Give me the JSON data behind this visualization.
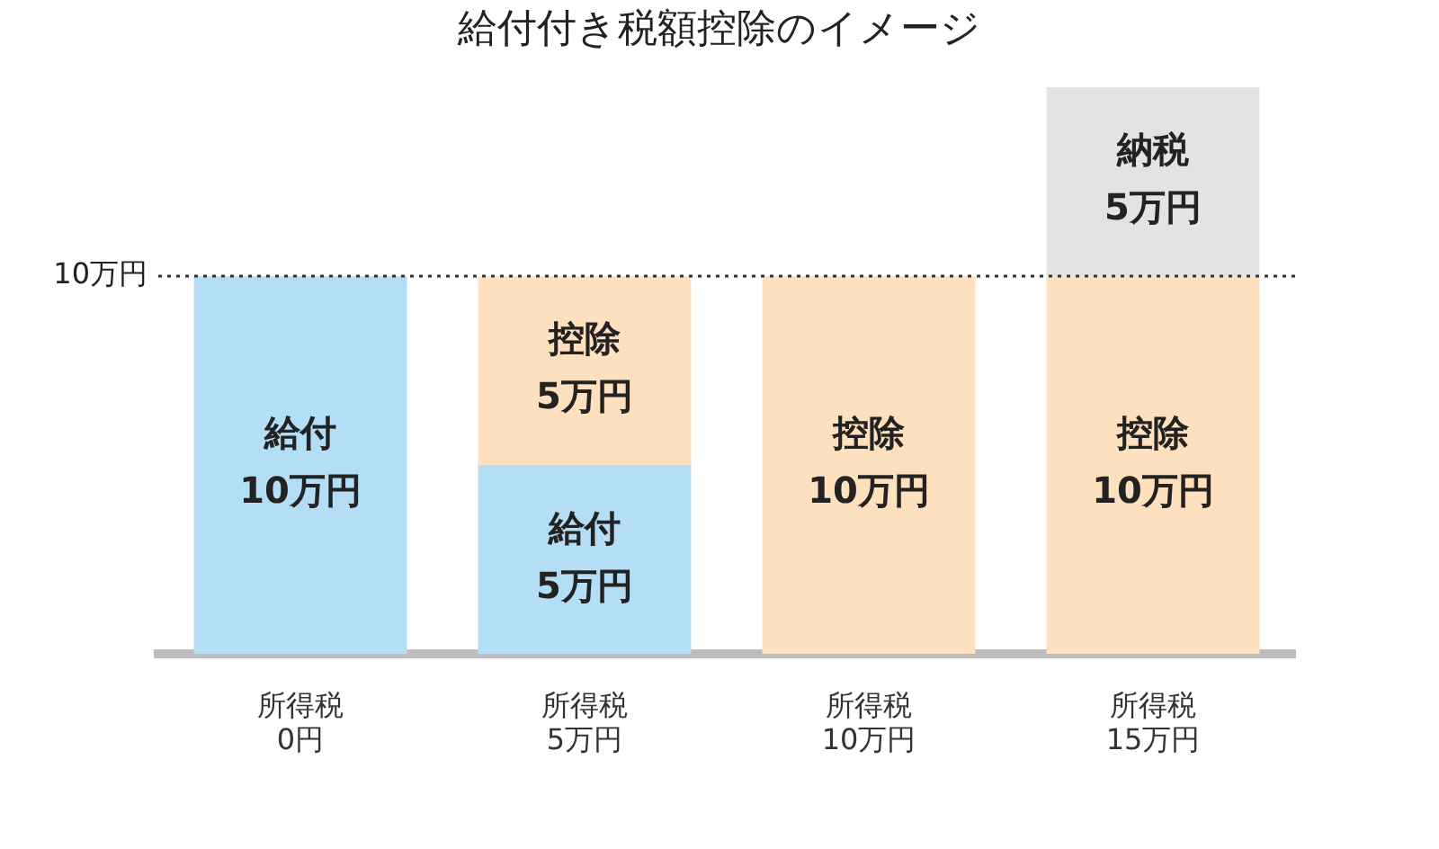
{
  "chart_data": {
    "type": "bar",
    "title": "給付付き税額控除のイメージ",
    "stacked": true,
    "categories": [
      "所得税\n0円",
      "所得税\n5万円",
      "所得税\n10万円",
      "所得税\n15万円"
    ],
    "series": [
      {
        "name": "給付",
        "color": "#b3def5",
        "values": [
          10,
          5,
          null,
          null
        ],
        "value_labels": [
          "10万円",
          "5万円",
          null,
          null
        ]
      },
      {
        "name": "控除",
        "color": "#fde0bd",
        "values": [
          null,
          5,
          10,
          10
        ],
        "value_labels": [
          null,
          "5万円",
          "10万円",
          "10万円"
        ]
      },
      {
        "name": "納税",
        "color": "#e3e3e3",
        "values": [
          null,
          null,
          null,
          5
        ],
        "value_labels": [
          null,
          null,
          null,
          "5万円"
        ]
      }
    ],
    "ylim": [
      0,
      15
    ],
    "tick_labels": "x",
    "grid": false,
    "legend": false,
    "ref_lines": [
      {
        "axis": "y",
        "value": 10,
        "label": "10万円",
        "line_style": "dotted",
        "color": "#333333"
      }
    ]
  }
}
